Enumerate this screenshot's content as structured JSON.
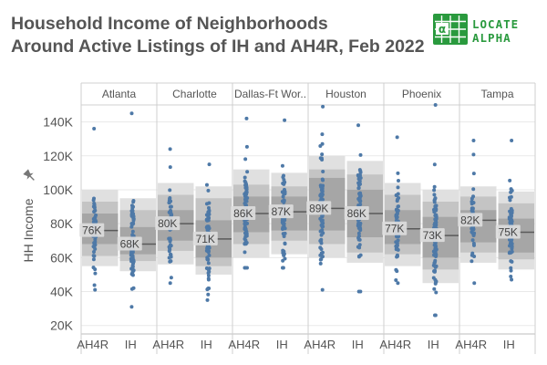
{
  "title": {
    "line1": "Household Income of Neighborhoods",
    "line2": "Around Active Listings of IH and AH4R, Feb 2022"
  },
  "logo": {
    "line1": "LOCATE",
    "line2": "ALPHA",
    "icon": "locate-alpha-grid-icon",
    "color": "#2a9a3e"
  },
  "sort_icon": "pin-icon",
  "colors": {
    "dots": "#4e79a7",
    "band_outer": "#e0e0e0",
    "band_mid": "#c4c4c4",
    "band_inner": "#a6a6a6",
    "median_line": "#5a5a5a",
    "grid": "#e9e9e9",
    "text": "#555555"
  },
  "chart_data": {
    "type": "scatter",
    "subtype": "faceted jitter strip plot with distribution bands",
    "xlabel": "",
    "ylabel": "HH Income",
    "ylim": [
      15000,
      150000
    ],
    "y_ticks": [
      20000,
      40000,
      60000,
      80000,
      100000,
      120000,
      140000
    ],
    "y_tick_labels": [
      "20K",
      "40K",
      "60K",
      "80K",
      "100K",
      "120K",
      "140K"
    ],
    "grid": true,
    "legend": "none",
    "facets": [
      {
        "name": "Atlanta",
        "groups": [
          {
            "label": "AH4R",
            "median": 76000,
            "median_label": "76K",
            "bands": [
              [
                55000,
                100000
              ],
              [
                61000,
                93000
              ],
              [
                68000,
                86000
              ]
            ],
            "min": 41000,
            "max": 136000,
            "count": 60
          },
          {
            "label": "IH",
            "median": 68000,
            "median_label": "68K",
            "bands": [
              [
                52000,
                95000
              ],
              [
                58000,
                88000
              ],
              [
                62000,
                78000
              ]
            ],
            "min": 31000,
            "max": 145000,
            "count": 80
          }
        ]
      },
      {
        "name": "Charlotte",
        "groups": [
          {
            "label": "AH4R",
            "median": 80000,
            "median_label": "80K",
            "bands": [
              [
                56000,
                104000
              ],
              [
                64000,
                97000
              ],
              [
                70000,
                88000
              ]
            ],
            "min": 45000,
            "max": 124000,
            "count": 55
          },
          {
            "label": "IH",
            "median": 71000,
            "median_label": "71K",
            "bands": [
              [
                50000,
                102000
              ],
              [
                55000,
                95000
              ],
              [
                60000,
                82000
              ]
            ],
            "min": 35000,
            "max": 115000,
            "count": 75
          }
        ]
      },
      {
        "name": "Dallas-Ft Wor..",
        "groups": [
          {
            "label": "AH4R",
            "median": 86000,
            "median_label": "86K",
            "bands": [
              [
                60000,
                112000
              ],
              [
                68000,
                103000
              ],
              [
                75000,
                96000
              ]
            ],
            "min": 54000,
            "max": 142000,
            "count": 70
          },
          {
            "label": "IH",
            "median": 87000,
            "median_label": "87K",
            "bands": [
              [
                62000,
                110000
              ],
              [
                70000,
                102000
              ],
              [
                76000,
                96000
              ]
            ],
            "min": 54000,
            "max": 141000,
            "count": 70
          }
        ]
      },
      {
        "name": "Houston",
        "groups": [
          {
            "label": "AH4R",
            "median": 89000,
            "median_label": "89K",
            "bands": [
              [
                60000,
                120000
              ],
              [
                68000,
                112000
              ],
              [
                76000,
                107000
              ]
            ],
            "min": 41000,
            "max": 149000,
            "count": 75
          },
          {
            "label": "IH",
            "median": 86000,
            "median_label": "86K",
            "bands": [
              [
                57000,
                117000
              ],
              [
                63000,
                109000
              ],
              [
                72000,
                100000
              ]
            ],
            "min": 40000,
            "max": 138000,
            "count": 75
          }
        ]
      },
      {
        "name": "Phoenix",
        "groups": [
          {
            "label": "AH4R",
            "median": 77000,
            "median_label": "77K",
            "bands": [
              [
                55000,
                104000
              ],
              [
                62000,
                97000
              ],
              [
                68000,
                88000
              ]
            ],
            "min": 45000,
            "max": 131000,
            "count": 65
          },
          {
            "label": "IH",
            "median": 73000,
            "median_label": "73K",
            "bands": [
              [
                45000,
                100000
              ],
              [
                53000,
                93000
              ],
              [
                60000,
                84000
              ]
            ],
            "min": 26000,
            "max": 150000,
            "count": 90
          }
        ]
      },
      {
        "name": "Tampa",
        "groups": [
          {
            "label": "AH4R",
            "median": 82000,
            "median_label": "82K",
            "bands": [
              [
                57000,
                102000
              ],
              [
                63000,
                96000
              ],
              [
                69000,
                88000
              ]
            ],
            "min": 45000,
            "max": 129000,
            "count": 50
          },
          {
            "label": "IH",
            "median": 75000,
            "median_label": "75K",
            "bands": [
              [
                53000,
                99000
              ],
              [
                59000,
                92000
              ],
              [
                63000,
                83000
              ]
            ],
            "min": 47000,
            "max": 129000,
            "count": 70
          }
        ]
      }
    ]
  }
}
